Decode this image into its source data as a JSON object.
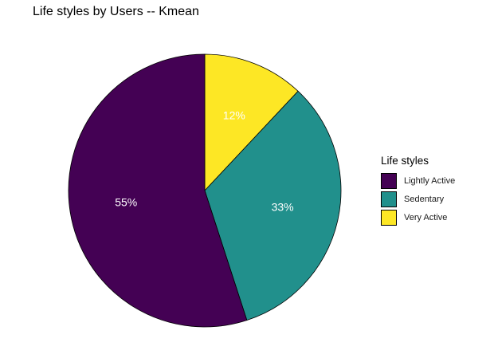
{
  "chart_data": {
    "type": "pie",
    "title": "Life styles by Users -- Kmean",
    "legend_title": "Life styles",
    "legend_position": "right",
    "slices": [
      {
        "label": "Lightly Active",
        "value": 55,
        "value_label": "55%",
        "color": "#440154"
      },
      {
        "label": "Sedentary",
        "value": 33,
        "value_label": "33%",
        "color": "#21908C"
      },
      {
        "label": "Very Active",
        "value": 12,
        "value_label": "12%",
        "color": "#FDE725"
      }
    ]
  }
}
